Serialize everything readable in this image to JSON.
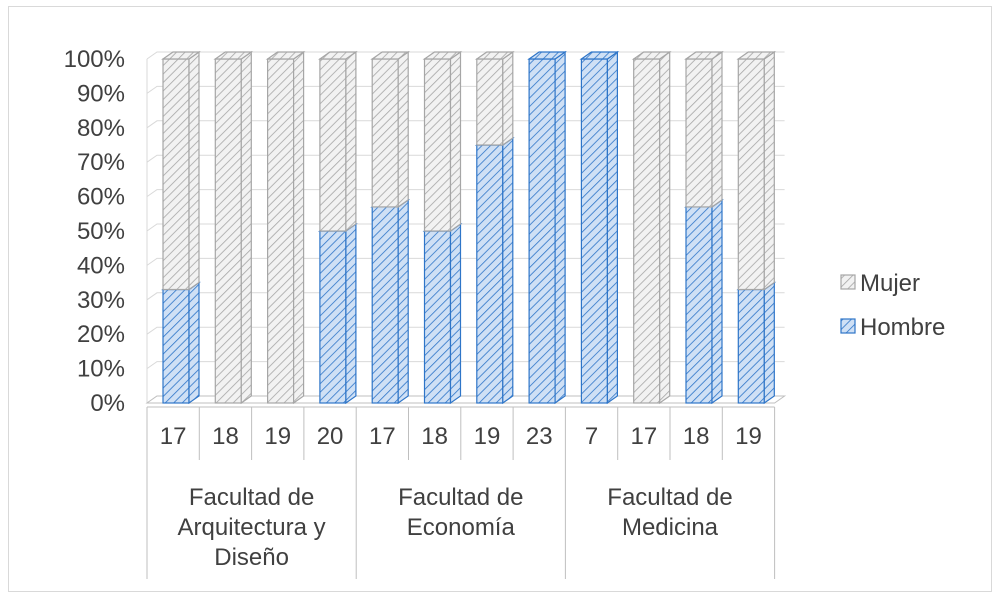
{
  "chart_data": {
    "type": "bar",
    "stacked": "percent",
    "three_d": true,
    "y_ticks": [
      "0%",
      "10%",
      "20%",
      "30%",
      "40%",
      "50%",
      "60%",
      "70%",
      "80%",
      "90%",
      "100%"
    ],
    "ylim": [
      0,
      100
    ],
    "groups": [
      {
        "label": "Facultad de Arquitectura y Diseño",
        "lines": [
          "Facultad de",
          "Arquitectura y",
          "Diseño"
        ],
        "categories": [
          "17",
          "18",
          "19",
          "20"
        ]
      },
      {
        "label": "Facultad de Economía",
        "lines": [
          "Facultad de",
          "Economía"
        ],
        "categories": [
          "17",
          "18",
          "19",
          "23"
        ]
      },
      {
        "label": "Facultad de Medicina",
        "lines": [
          "Facultad de",
          "Medicina"
        ],
        "categories": [
          "7",
          "17",
          "18",
          "19"
        ]
      }
    ],
    "series": [
      {
        "name": "Hombre",
        "color": "#2e75c8",
        "values": [
          33,
          0,
          0,
          50,
          57,
          50,
          75,
          100,
          100,
          0,
          57,
          33
        ]
      },
      {
        "name": "Mujer",
        "color": "#bfbfbf",
        "values": [
          67,
          100,
          100,
          50,
          43,
          50,
          25,
          0,
          0,
          100,
          43,
          67
        ]
      }
    ],
    "legend": {
      "position": "right",
      "items": [
        "Mujer",
        "Hombre"
      ]
    },
    "grid": true
  }
}
